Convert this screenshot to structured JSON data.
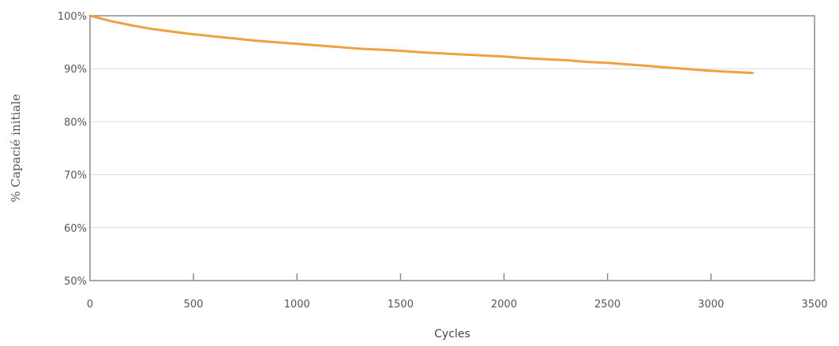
{
  "chart_data": {
    "type": "line",
    "xlabel": "Cycles",
    "ylabel": "% Capacié initiale",
    "xlim": [
      0,
      3500
    ],
    "ylim": [
      50,
      100
    ],
    "x_ticks": [
      0,
      500,
      1000,
      1500,
      2000,
      2500,
      3000,
      3500
    ],
    "x_tick_labels": [
      "0",
      "500",
      "1000",
      "1500",
      "2000",
      "2500",
      "3000",
      "3500"
    ],
    "y_ticks": [
      50,
      60,
      70,
      80,
      90,
      100
    ],
    "y_tick_labels": [
      "50%",
      "60%",
      "70%",
      "80%",
      "90%",
      "100%"
    ],
    "grid": true,
    "series": [
      {
        "color": "#F0A040",
        "x": [
          0,
          100,
          200,
          300,
          400,
          500,
          600,
          700,
          800,
          900,
          1000,
          1100,
          1200,
          1300,
          1400,
          1500,
          1600,
          1700,
          1800,
          1900,
          2000,
          2100,
          2200,
          2300,
          2400,
          2500,
          2600,
          2700,
          2800,
          2900,
          3000,
          3100,
          3200
        ],
        "y": [
          100,
          99.0,
          98.2,
          97.5,
          97.0,
          96.5,
          96.1,
          95.7,
          95.3,
          95.0,
          94.7,
          94.4,
          94.1,
          93.8,
          93.6,
          93.4,
          93.1,
          92.9,
          92.7,
          92.5,
          92.3,
          92.0,
          91.8,
          91.6,
          91.3,
          91.1,
          90.8,
          90.5,
          90.2,
          89.9,
          89.6,
          89.4,
          89.2
        ]
      }
    ]
  }
}
